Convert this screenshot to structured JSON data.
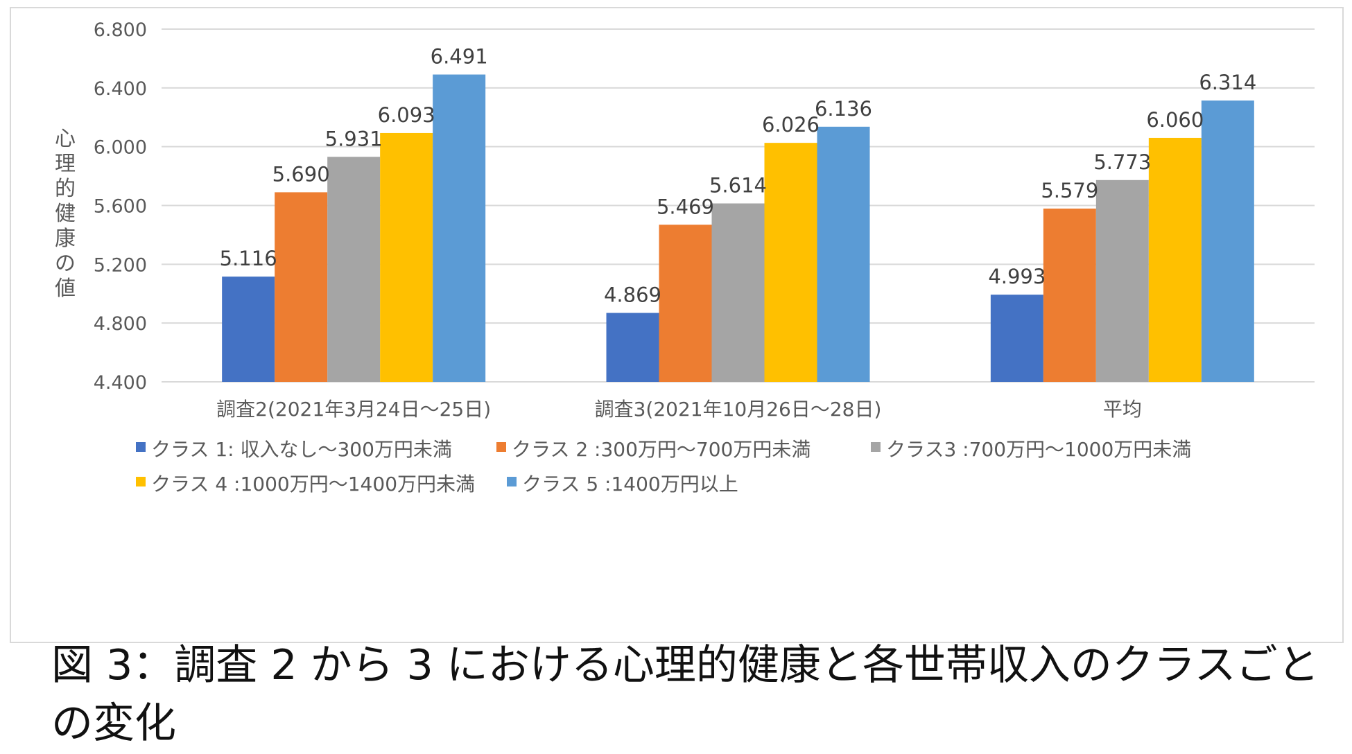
{
  "caption": "図 3：調査 2 から 3 における心理的健康と各世帯収入のクラスごとの変化",
  "chart_data": {
    "type": "bar",
    "ylabel": "心理的健康の値",
    "xlabel": "",
    "ylim": [
      4.4,
      6.8
    ],
    "yticks": [
      "4.400",
      "4.800",
      "5.200",
      "5.600",
      "6.000",
      "6.400",
      "6.800"
    ],
    "grid": true,
    "legend_position": "bottom",
    "categories": [
      "調査2(2021年3月24日～25日)",
      "調査3(2021年10月26日～28日)",
      "平均"
    ],
    "series": [
      {
        "name": "クラス 1: 収入なし～300万円未満",
        "color": "#4472c4",
        "values": [
          5.116,
          4.869,
          4.993
        ],
        "labels": [
          "5.116",
          "4.869",
          "4.993"
        ]
      },
      {
        "name": "クラス 2 :300万円～700万円未満",
        "color": "#ed7d31",
        "values": [
          5.69,
          5.469,
          5.579
        ],
        "labels": [
          "5.690",
          "5.469",
          "5.579"
        ]
      },
      {
        "name": "クラス3 :700万円～1000万円未満",
        "color": "#a5a5a5",
        "values": [
          5.931,
          5.614,
          5.773
        ],
        "labels": [
          "5.931",
          "5.614",
          "5.773"
        ]
      },
      {
        "name": "クラス 4 :1000万円～1400万円未満",
        "color": "#ffc000",
        "values": [
          6.093,
          6.026,
          6.06
        ],
        "labels": [
          "6.093",
          "6.026",
          "6.060"
        ]
      },
      {
        "name": "クラス 5 :1400万円以上",
        "color": "#5b9bd5",
        "values": [
          6.491,
          6.136,
          6.314
        ],
        "labels": [
          "6.491",
          "6.136",
          "6.314"
        ]
      }
    ]
  }
}
